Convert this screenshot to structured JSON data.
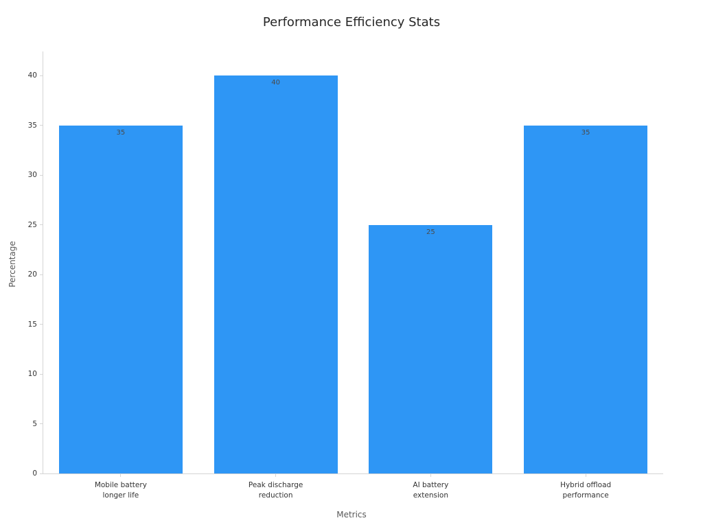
{
  "chart_data": {
    "type": "bar",
    "title": "Performance Efficiency Stats",
    "xlabel": "Metrics",
    "ylabel": "Percentage",
    "categories": [
      "Mobile battery\nlonger life",
      "Peak discharge\nreduction",
      "AI battery\nextension",
      "Hybrid offload\nperformance"
    ],
    "values": [
      35,
      40,
      25,
      35
    ],
    "value_labels": [
      "35",
      "40",
      "25",
      "35"
    ],
    "ylim": [
      0,
      40
    ],
    "yticks": [
      0,
      5,
      10,
      15,
      20,
      25,
      30,
      35,
      40
    ],
    "bar_color": "#2e96f5",
    "value_label_color": "#4a4a4a",
    "grid": false,
    "legend": "none"
  }
}
